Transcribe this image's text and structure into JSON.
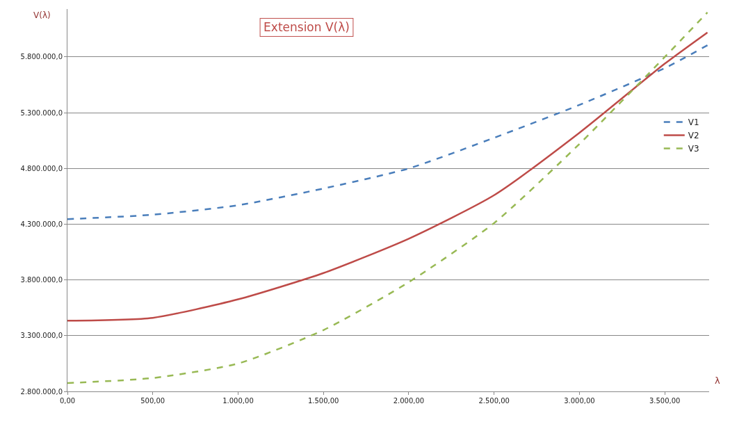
{
  "chart_data": {
    "type": "line",
    "title": "Extension V(λ)",
    "xlabel": "λ",
    "ylabel": "V(λ)",
    "x": [
      0,
      500,
      1000,
      1500,
      2000,
      2500,
      3000,
      3500,
      3750
    ],
    "series": [
      {
        "name": "V1",
        "color": "#4a7ebb",
        "line_style": "dashed",
        "values": [
          4345000,
          4385000,
          4470000,
          4620000,
          4800000,
          5075000,
          5370000,
          5700000,
          5905000
        ]
      },
      {
        "name": "V2",
        "color": "#be4b48",
        "line_style": "solid",
        "values": [
          3434000,
          3460000,
          3626000,
          3862000,
          4170000,
          4560000,
          5120000,
          5740000,
          6020000
        ]
      },
      {
        "name": "V3",
        "color": "#98b954",
        "line_style": "dashed",
        "values": [
          2875000,
          2920000,
          3050000,
          3350000,
          3780000,
          4310000,
          5020000,
          5800000,
          6200000
        ]
      }
    ],
    "xlim": [
      0,
      3760
    ],
    "xticks": [
      {
        "value": 0,
        "label": "0,00"
      },
      {
        "value": 500,
        "label": "500,00"
      },
      {
        "value": 1000,
        "label": "1.000,00"
      },
      {
        "value": 1500,
        "label": "1.500,00"
      },
      {
        "value": 2000,
        "label": "2.000,00"
      },
      {
        "value": 2500,
        "label": "2.500,00"
      },
      {
        "value": 3000,
        "label": "3.000,00"
      },
      {
        "value": 3500,
        "label": "3.500,00"
      }
    ],
    "ylim": [
      2800000,
      6230000
    ],
    "yticks": [
      {
        "value": 2800000,
        "label": "2.800.000,0"
      },
      {
        "value": 3300000,
        "label": "3.300.000,0"
      },
      {
        "value": 3800000,
        "label": "3.800.000,0"
      },
      {
        "value": 4300000,
        "label": "4.300.000,0"
      },
      {
        "value": 4800000,
        "label": "4.800.000,0"
      },
      {
        "value": 5300000,
        "label": "5.300.000,0"
      },
      {
        "value": 5800000,
        "label": "5.800.000,0"
      }
    ],
    "grid": "y",
    "legend": "right",
    "marker": "none"
  }
}
